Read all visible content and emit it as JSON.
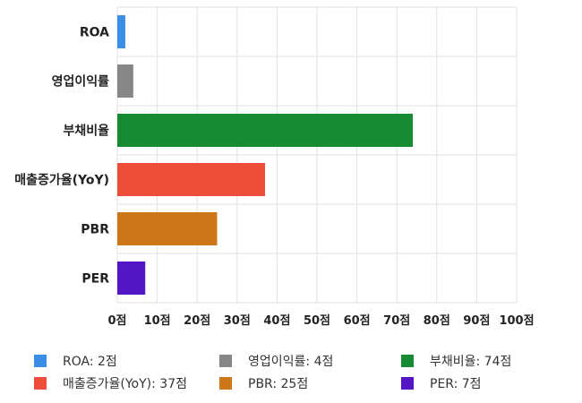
{
  "chart_data": {
    "type": "bar",
    "orientation": "horizontal",
    "categories": [
      "ROA",
      "영업이익률",
      "부채비율",
      "매출증가율(YoY)",
      "PBR",
      "PER"
    ],
    "values": [
      2,
      4,
      74,
      37,
      25,
      7
    ],
    "colors": [
      "#3a8ee6",
      "#878787",
      "#178a34",
      "#ee4d38",
      "#cc7618",
      "#5216c4"
    ],
    "xlim": [
      0,
      100
    ],
    "xticks": [
      0,
      10,
      20,
      30,
      40,
      50,
      60,
      70,
      80,
      90,
      100
    ],
    "tick_suffix": "점",
    "grid": true,
    "legend_position": "bottom",
    "legend": [
      {
        "label": "ROA: 2점",
        "color": "#3a8ee6"
      },
      {
        "label": "영업이익률: 4점",
        "color": "#878787"
      },
      {
        "label": "부채비율: 74점",
        "color": "#178a34"
      },
      {
        "label": "매출증가율(YoY): 37점",
        "color": "#ee4d38"
      },
      {
        "label": "PBR: 25점",
        "color": "#cc7618"
      },
      {
        "label": "PER: 7점",
        "color": "#5216c4"
      }
    ]
  }
}
